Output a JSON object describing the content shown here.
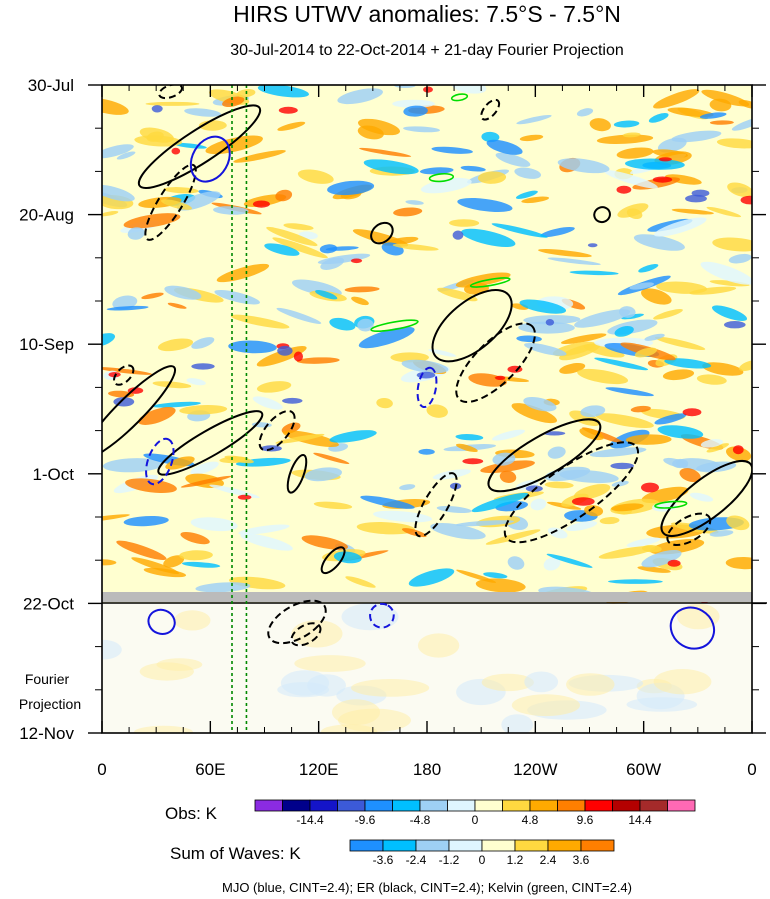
{
  "chart_data": {
    "type": "heatmap",
    "title": "HIRS UTWV anomalies: 7.5°S - 7.5°N",
    "subtitle": "30-Jul-2014 to 22-Oct-2014 + 21-day Fourier Projection",
    "x_ticks": [
      "0",
      "60E",
      "120E",
      "180",
      "120W",
      "60W",
      "0"
    ],
    "y_ticks": [
      "30-Jul",
      "20-Aug",
      "10-Sep",
      "1-Oct",
      "22-Oct",
      "12-Nov"
    ],
    "xlim_deg_east": [
      0,
      360
    ],
    "ylim_days_from_30_jul": [
      0,
      105
    ],
    "projection_start_day": 84,
    "projection_label": "Fourier Projection",
    "projection_label_lines": [
      "Fourier",
      "Projection"
    ],
    "reference_longitudes": [
      72,
      80
    ],
    "obs_colorbar": {
      "label": "Obs: K",
      "tick_labels": [
        "-14.4",
        "-9.6",
        "-4.8",
        "0",
        "4.8",
        "9.6",
        "14.4"
      ],
      "colors": [
        "#8b2be2",
        "#00008b",
        "#1414c8",
        "#3c5ad8",
        "#1e90ff",
        "#00bfff",
        "#9ed0f5",
        "#dff6ff",
        "#ffffd0",
        "#ffd940",
        "#ffaa00",
        "#ff7f00",
        "#ff0000",
        "#b40000",
        "#a52a2a",
        "#ff69b4"
      ]
    },
    "waves_colorbar": {
      "label": "Sum of Waves: K",
      "tick_labels": [
        "-3.6",
        "-2.4",
        "-1.2",
        "0",
        "1.2",
        "2.4",
        "3.6"
      ],
      "colors": [
        "#1e90ff",
        "#00bfff",
        "#9ed0f5",
        "#dff6ff",
        "#ffffd0",
        "#ffd940",
        "#ffaa00",
        "#ff7f00"
      ]
    },
    "legend": "MJO (blue, CINT=2.4); ER (black, CINT=2.4); Kelvin (green, CINT=2.4)",
    "wave_colors": {
      "MJO": "#1414dc",
      "ER": "#000000",
      "Kelvin": "#00dd00"
    },
    "contours": [
      {
        "wave": "ER",
        "sign": "pos",
        "lon": 54,
        "day": 10,
        "half_len": 18,
        "half_wid": 2.2,
        "angle": -33
      },
      {
        "wave": "ER",
        "sign": "neg",
        "lon": 38,
        "day": 19,
        "half_len": 11,
        "half_wid": 1.6,
        "angle": -58
      },
      {
        "wave": "ER",
        "sign": "neg",
        "lon": 38,
        "day": 1,
        "half_len": 3,
        "half_wid": 0.8,
        "angle": -20
      },
      {
        "wave": "ER",
        "sign": "pos",
        "lon": 15,
        "day": 53,
        "half_len": 16,
        "half_wid": 1.8,
        "angle": -45
      },
      {
        "wave": "ER",
        "sign": "pos",
        "lon": 60,
        "day": 58,
        "half_len": 15,
        "half_wid": 1.7,
        "angle": -30
      },
      {
        "wave": "ER",
        "sign": "neg",
        "lon": 12,
        "day": 47,
        "half_len": 3,
        "half_wid": 0.9,
        "angle": -45
      },
      {
        "wave": "ER",
        "sign": "neg",
        "lon": 97,
        "day": 56,
        "half_len": 6,
        "half_wid": 1.5,
        "angle": -50
      },
      {
        "wave": "ER",
        "sign": "pos",
        "lon": 108,
        "day": 63,
        "half_len": 5,
        "half_wid": 0.9,
        "angle": -70
      },
      {
        "wave": "ER",
        "sign": "pos",
        "lon": 128,
        "day": 77,
        "half_len": 4,
        "half_wid": 0.9,
        "angle": -50
      },
      {
        "wave": "ER",
        "sign": "pos",
        "lon": 155,
        "day": 24,
        "half_len": 3,
        "half_wid": 1.2,
        "angle": -40
      },
      {
        "wave": "ER",
        "sign": "pos",
        "lon": 205,
        "day": 39,
        "half_len": 12,
        "half_wid": 3.2,
        "angle": -40
      },
      {
        "wave": "ER",
        "sign": "neg",
        "lon": 218,
        "day": 45,
        "half_len": 13,
        "half_wid": 2.8,
        "angle": -45
      },
      {
        "wave": "ER",
        "sign": "pos",
        "lon": 245,
        "day": 60,
        "half_len": 16,
        "half_wid": 2.6,
        "angle": -30
      },
      {
        "wave": "ER",
        "sign": "neg",
        "lon": 260,
        "day": 66,
        "half_len": 20,
        "half_wid": 3.4,
        "angle": -35
      },
      {
        "wave": "ER",
        "sign": "pos",
        "lon": 335,
        "day": 67,
        "half_len": 14,
        "half_wid": 2.6,
        "angle": -38
      },
      {
        "wave": "ER",
        "sign": "neg",
        "lon": 325,
        "day": 72,
        "half_len": 6,
        "half_wid": 1.6,
        "angle": -30
      },
      {
        "wave": "ER",
        "sign": "neg",
        "lon": 185,
        "day": 68,
        "half_len": 9,
        "half_wid": 1.6,
        "angle": -60
      },
      {
        "wave": "ER",
        "sign": "neg",
        "lon": 108,
        "day": 87,
        "half_len": 8,
        "half_wid": 2.2,
        "angle": -30
      },
      {
        "wave": "ER",
        "sign": "neg",
        "lon": 113,
        "day": 89,
        "half_len": 4,
        "half_wid": 1.2,
        "angle": -30
      },
      {
        "wave": "ER",
        "sign": "neg",
        "lon": 215,
        "day": 4,
        "half_len": 3,
        "half_wid": 0.8,
        "angle": -50
      },
      {
        "wave": "ER",
        "sign": "pos",
        "lon": 277,
        "day": 21,
        "half_len": 2,
        "half_wid": 1.0,
        "angle": -20
      },
      {
        "wave": "MJO",
        "sign": "pos",
        "lon": 60,
        "day": 12,
        "half_len": 6,
        "half_wid": 2.4,
        "angle": -60
      },
      {
        "wave": "MJO",
        "sign": "neg",
        "lon": 32,
        "day": 61,
        "half_len": 6,
        "half_wid": 1.6,
        "angle": -70
      },
      {
        "wave": "MJO",
        "sign": "neg",
        "lon": 180,
        "day": 49,
        "half_len": 5,
        "half_wid": 1.2,
        "angle": -80
      },
      {
        "wave": "MJO",
        "sign": "pos",
        "lon": 33,
        "day": 87,
        "half_len": 3,
        "half_wid": 1.8,
        "angle": -70
      },
      {
        "wave": "MJO",
        "sign": "neg",
        "lon": 155,
        "day": 86,
        "half_len": 3,
        "half_wid": 1.6,
        "angle": -60
      },
      {
        "wave": "MJO",
        "sign": "pos",
        "lon": 327,
        "day": 88,
        "half_len": 5,
        "half_wid": 3.0,
        "angle": -60
      },
      {
        "wave": "Kelvin",
        "sign": "pos",
        "lon": 198,
        "day": 2,
        "half_len": 2,
        "half_wid": 0.4,
        "angle": -10
      },
      {
        "wave": "Kelvin",
        "sign": "pos",
        "lon": 188,
        "day": 15,
        "half_len": 3,
        "half_wid": 0.5,
        "angle": -5
      },
      {
        "wave": "Kelvin",
        "sign": "pos",
        "lon": 215,
        "day": 32,
        "half_len": 5,
        "half_wid": 0.4,
        "angle": -10
      },
      {
        "wave": "Kelvin",
        "sign": "pos",
        "lon": 162,
        "day": 39,
        "half_len": 6,
        "half_wid": 0.5,
        "angle": -10
      },
      {
        "wave": "Kelvin",
        "sign": "pos",
        "lon": 315,
        "day": 68,
        "half_len": 4,
        "half_wid": 0.4,
        "angle": -5
      }
    ]
  }
}
